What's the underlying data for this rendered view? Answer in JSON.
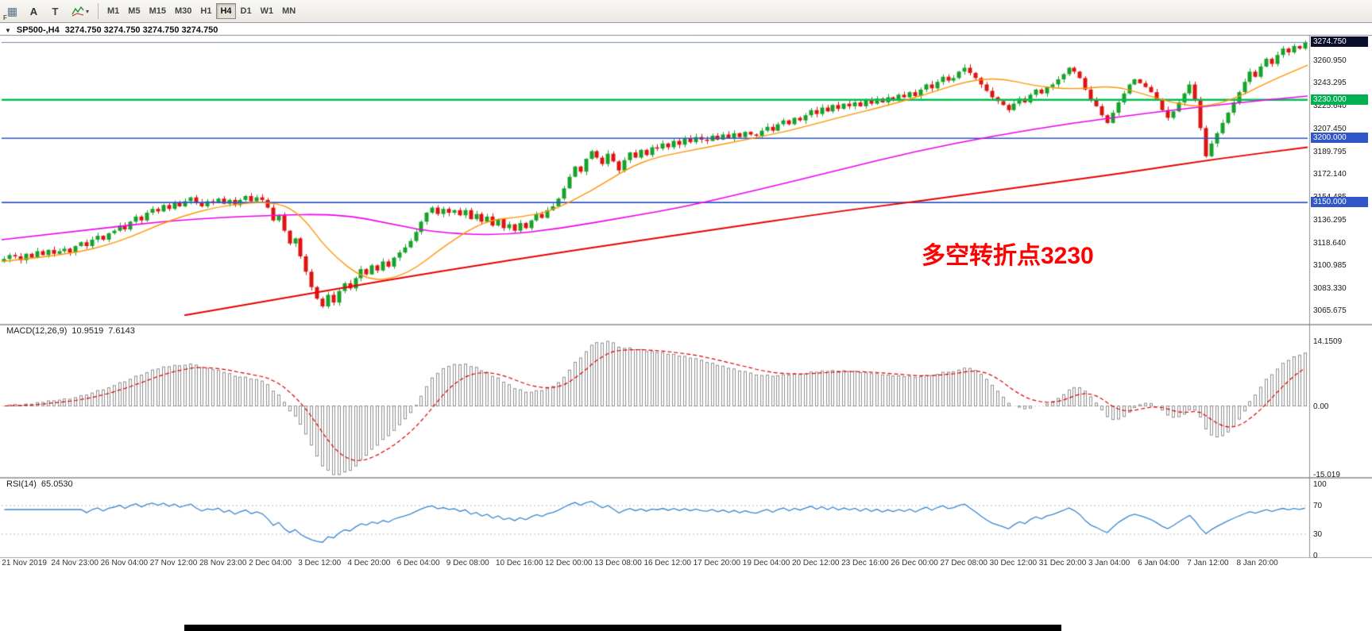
{
  "toolbar": {
    "tools": [
      {
        "label": "charts-grid",
        "glyph": "▦",
        "sub": "F"
      },
      {
        "label": "text-annotation",
        "glyph": "A"
      },
      {
        "label": "text-label",
        "glyph": "T"
      },
      {
        "label": "indicators",
        "dropdown": "▾"
      }
    ],
    "timeframes": [
      "M1",
      "M5",
      "M15",
      "M30",
      "H1",
      "H4",
      "D1",
      "W1",
      "MN"
    ],
    "active_timeframe": "H4"
  },
  "chart": {
    "collapse_arrow": "▼",
    "symbol_period": "SP500-,H4",
    "ohlc_text": "3274.750 3274.750 3274.750 3274.750",
    "annotation": "多空转折点3230"
  },
  "macd_panel": {
    "name": "MACD(12,26,9)",
    "macd_value": "10.9519",
    "signal_value": "7.6143"
  },
  "rsi_panel": {
    "name": "RSI(14)",
    "value": "65.0530"
  },
  "chart_data": {
    "type": "candlestick",
    "symbol": "SP500-",
    "timeframe": "H4",
    "up_color": "#17a32b",
    "down_color": "#dd1410",
    "price_axis": {
      "top_price": 3280,
      "bottom_price": 3056,
      "ticks": [
        "3260.950",
        "3243.295",
        "3225.640",
        "3207.450",
        "3189.795",
        "3172.140",
        "3154.485",
        "3136.295",
        "3118.640",
        "3100.985",
        "3083.330",
        "3065.675"
      ],
      "current": {
        "label": "3274.750",
        "value": 3274.75,
        "bg": "#0a0f2e"
      },
      "level_boxes": [
        {
          "label": "3230.000",
          "value": 3230,
          "bg": "#00b050"
        },
        {
          "label": "3200.000",
          "value": 3200,
          "bg": "#3156c8"
        },
        {
          "label": "3150.000",
          "value": 3150,
          "bg": "#3156c8"
        }
      ]
    },
    "hlines": [
      {
        "value": 3230,
        "color": "#00c050",
        "width": 2.4
      },
      {
        "value": 3200,
        "color": "#3156c8",
        "width": 1.6
      },
      {
        "value": 3150,
        "color": "#3156c8",
        "width": 1.6
      }
    ],
    "current_price": 3274.75,
    "current_price_line_color": "#6e86ad",
    "x_tick_labels": [
      "21 Nov 2019",
      "24 Nov 23:00",
      "26 Nov 04:00",
      "27 Nov 12:00",
      "28 Nov 23:00",
      "2 Dec 04:00",
      "3 Dec 12:00",
      "4 Dec 20:00",
      "6 Dec 04:00",
      "9 Dec 08:00",
      "10 Dec 16:00",
      "12 Dec 00:00",
      "13 Dec 08:00",
      "16 Dec 12:00",
      "17 Dec 20:00",
      "19 Dec 04:00",
      "20 Dec 12:00",
      "23 Dec 16:00",
      "26 Dec 00:00",
      "27 Dec 08:00",
      "30 Dec 12:00",
      "31 Dec 20:00",
      "3 Jan 04:00",
      "6 Jan 04:00",
      "7 Jan 12:00",
      "8 Jan 20:00"
    ],
    "closes": [
      3106,
      3109,
      3108,
      3105,
      3110,
      3107,
      3112,
      3109,
      3113,
      3110,
      3112,
      3114,
      3111,
      3116,
      3119,
      3116,
      3121,
      3124,
      3121,
      3126,
      3128,
      3132,
      3129,
      3135,
      3139,
      3136,
      3142,
      3145,
      3143,
      3148,
      3145,
      3150,
      3147,
      3151,
      3154,
      3150,
      3147,
      3151,
      3150,
      3153,
      3149,
      3152,
      3148,
      3152,
      3155,
      3151,
      3154,
      3152,
      3146,
      3136,
      3140,
      3128,
      3118,
      3122,
      3108,
      3096,
      3084,
      3075,
      3069,
      3078,
      3072,
      3081,
      3087,
      3083,
      3091,
      3098,
      3094,
      3101,
      3097,
      3104,
      3100,
      3107,
      3111,
      3115,
      3120,
      3127,
      3135,
      3142,
      3146,
      3141,
      3145,
      3142,
      3144,
      3140,
      3144,
      3137,
      3141,
      3135,
      3139,
      3132,
      3137,
      3130,
      3133,
      3128,
      3134,
      3130,
      3136,
      3141,
      3138,
      3144,
      3147,
      3153,
      3161,
      3170,
      3178,
      3174,
      3184,
      3190,
      3185,
      3180,
      3188,
      3182,
      3175,
      3183,
      3189,
      3185,
      3191,
      3187,
      3193,
      3192,
      3196,
      3193,
      3198,
      3195,
      3200,
      3197,
      3201,
      3199,
      3198,
      3202,
      3199,
      3203,
      3200,
      3204,
      3201,
      3205,
      3203,
      3202,
      3206,
      3209,
      3206,
      3211,
      3214,
      3211,
      3216,
      3214,
      3218,
      3222,
      3219,
      3224,
      3221,
      3226,
      3223,
      3227,
      3225,
      3228,
      3225,
      3230,
      3227,
      3231,
      3228,
      3232,
      3230,
      3234,
      3232,
      3236,
      3233,
      3238,
      3242,
      3239,
      3244,
      3248,
      3245,
      3247,
      3252,
      3255,
      3251,
      3247,
      3242,
      3237,
      3232,
      3229,
      3226,
      3222,
      3227,
      3231,
      3228,
      3234,
      3238,
      3235,
      3240,
      3242,
      3246,
      3250,
      3255,
      3252,
      3247,
      3238,
      3230,
      3225,
      3218,
      3212,
      3220,
      3228,
      3235,
      3242,
      3246,
      3243,
      3240,
      3236,
      3230,
      3222,
      3216,
      3221,
      3228,
      3235,
      3242,
      3230,
      3208,
      3186,
      3196,
      3204,
      3212,
      3220,
      3228,
      3236,
      3244,
      3252,
      3248,
      3256,
      3262,
      3258,
      3265,
      3270,
      3267,
      3272,
      3270,
      3274.75
    ],
    "ma_lines": {
      "orange": {
        "color": "#ff9500",
        "width": 1.4,
        "anchors": [
          [
            0,
            3104
          ],
          [
            0.05,
            3109
          ],
          [
            0.09,
            3119
          ],
          [
            0.13,
            3137
          ],
          [
            0.17,
            3148
          ],
          [
            0.21,
            3151
          ],
          [
            0.23,
            3140
          ],
          [
            0.25,
            3112
          ],
          [
            0.28,
            3088
          ],
          [
            0.31,
            3093
          ],
          [
            0.34,
            3117
          ],
          [
            0.37,
            3136
          ],
          [
            0.4,
            3139
          ],
          [
            0.42,
            3143
          ],
          [
            0.45,
            3158
          ],
          [
            0.48,
            3177
          ],
          [
            0.5,
            3185
          ],
          [
            0.53,
            3191
          ],
          [
            0.56,
            3197
          ],
          [
            0.6,
            3205
          ],
          [
            0.64,
            3216
          ],
          [
            0.68,
            3226
          ],
          [
            0.71,
            3235
          ],
          [
            0.74,
            3245
          ],
          [
            0.765,
            3247
          ],
          [
            0.79,
            3241
          ],
          [
            0.82,
            3238
          ],
          [
            0.85,
            3241
          ],
          [
            0.87,
            3236
          ],
          [
            0.895,
            3228
          ],
          [
            0.92,
            3224
          ],
          [
            0.945,
            3231
          ],
          [
            0.97,
            3244
          ],
          [
            1,
            3257
          ]
        ]
      },
      "magenta": {
        "color": "#ef00ef",
        "width": 1.6,
        "anchors": [
          [
            0,
            3121
          ],
          [
            0.07,
            3129
          ],
          [
            0.13,
            3136
          ],
          [
            0.2,
            3140
          ],
          [
            0.26,
            3141
          ],
          [
            0.3,
            3133
          ],
          [
            0.33,
            3127
          ],
          [
            0.38,
            3124
          ],
          [
            0.43,
            3130
          ],
          [
            0.48,
            3139
          ],
          [
            0.52,
            3146
          ],
          [
            0.58,
            3160
          ],
          [
            0.64,
            3175
          ],
          [
            0.7,
            3190
          ],
          [
            0.76,
            3202
          ],
          [
            0.82,
            3212
          ],
          [
            0.88,
            3220
          ],
          [
            0.94,
            3227
          ],
          [
            1,
            3233
          ]
        ]
      },
      "red": {
        "color": "#e80000",
        "width": 2,
        "anchors": [
          [
            0.14,
            3062
          ],
          [
            0.24,
            3080
          ],
          [
            0.34,
            3097
          ],
          [
            0.44,
            3113
          ],
          [
            0.54,
            3128
          ],
          [
            0.64,
            3143
          ],
          [
            0.71,
            3152
          ],
          [
            0.78,
            3162
          ],
          [
            0.86,
            3173
          ],
          [
            0.93,
            3184
          ],
          [
            1,
            3193
          ]
        ]
      }
    },
    "macd": {
      "fast": 12,
      "slow": 26,
      "signal": 9,
      "axis_max": 14.1509,
      "axis_min": -15.019,
      "ticks": [
        {
          "label": "14.1509",
          "value": 14.1509
        },
        {
          "label": "0.00",
          "value": 0
        },
        {
          "label": "-15.019",
          "value": -15.019
        }
      ],
      "hist_color": "#8f8f8f",
      "signal_color": "#e00000"
    },
    "rsi": {
      "period": 14,
      "color": "#3a87d0",
      "levels": [
        70,
        30
      ],
      "ticks": [
        {
          "label": "100",
          "value": 100
        },
        {
          "label": "70",
          "value": 70
        },
        {
          "label": "30",
          "value": 30
        },
        {
          "label": "0",
          "value": 0
        }
      ]
    }
  }
}
